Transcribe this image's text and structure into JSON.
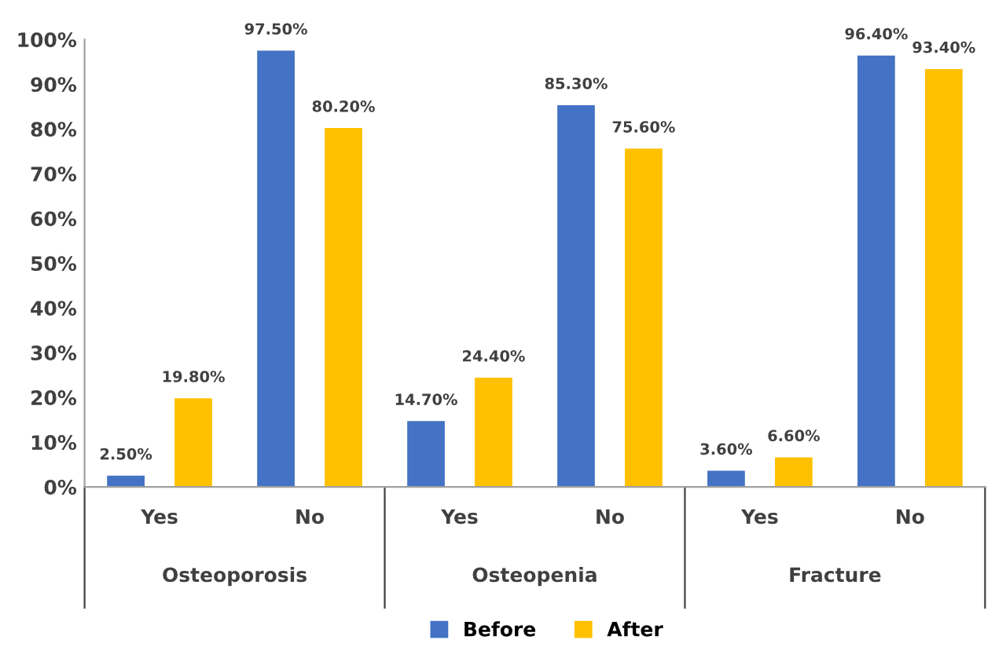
{
  "chart_data": {
    "type": "bar",
    "categories": [
      "Yes",
      "No",
      "Yes",
      "No",
      "Yes",
      "No"
    ],
    "series": [
      {
        "name": "Before",
        "color": "#4472c4",
        "values": [
          2.5,
          97.5,
          14.7,
          85.3,
          3.6,
          96.4
        ],
        "value_labels": [
          "2.50%",
          "97.50%",
          "14.70%",
          "85.30%",
          "3.60%",
          "96.40%"
        ]
      },
      {
        "name": "After",
        "color": "#ffc000",
        "values": [
          19.8,
          80.2,
          24.4,
          75.6,
          6.6,
          93.4
        ],
        "value_labels": [
          "19.80%",
          "80.20%",
          "24.40%",
          "75.60%",
          "6.60%",
          "93.40%"
        ]
      }
    ],
    "annotations": [
      "Osteoporosis",
      "Osteopenia",
      "Fracture"
    ],
    "ylim": [
      0,
      100
    ],
    "yticks": [
      {
        "value": 0,
        "label": "0%"
      },
      {
        "value": 10,
        "label": "10%"
      },
      {
        "value": 20,
        "label": "20%"
      },
      {
        "value": 30,
        "label": "30%"
      },
      {
        "value": 40,
        "label": "40%"
      },
      {
        "value": 50,
        "label": "50%"
      },
      {
        "value": 60,
        "label": "60%"
      },
      {
        "value": 70,
        "label": "70%"
      },
      {
        "value": 80,
        "label": "80%"
      },
      {
        "value": 90,
        "label": "90%"
      },
      {
        "value": 100,
        "label": "100%"
      }
    ],
    "grid": false,
    "legend": "bottom"
  }
}
